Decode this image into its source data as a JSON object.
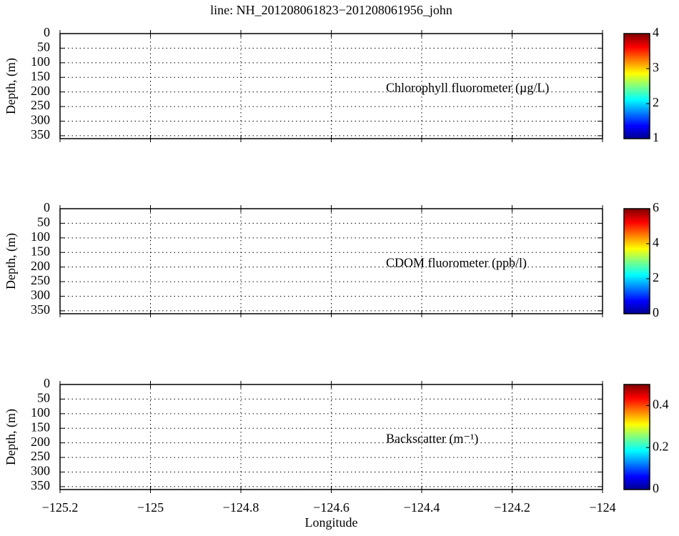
{
  "chart_data": [
    {
      "type": "heatmap",
      "title": "line: NH_201208061823−201208061956_john",
      "ylabel": "Depth, (m)",
      "annotation": "Chlorophyll fluorometer (µg/L)",
      "ylim": [
        0,
        360
      ],
      "y_inverted": true,
      "yticks": [
        0,
        50,
        100,
        150,
        200,
        250,
        300,
        350
      ],
      "xlim": [
        -125.2,
        -124
      ],
      "xticks": [
        -125.2,
        -125,
        -124.8,
        -124.6,
        -124.4,
        -124.2,
        -124
      ],
      "grid": true,
      "colormap": "jet",
      "clim": [
        1,
        4
      ],
      "cticks": [
        1,
        2,
        3,
        4
      ]
    },
    {
      "type": "heatmap",
      "ylabel": "Depth, (m)",
      "annotation": "CDOM fluorometer (ppb/l)",
      "ylim": [
        0,
        360
      ],
      "y_inverted": true,
      "yticks": [
        0,
        50,
        100,
        150,
        200,
        250,
        300,
        350
      ],
      "xlim": [
        -125.2,
        -124
      ],
      "xticks": [
        -125.2,
        -125,
        -124.8,
        -124.6,
        -124.4,
        -124.2,
        -124
      ],
      "grid": true,
      "colormap": "jet",
      "clim": [
        0,
        6
      ],
      "cticks": [
        0,
        2,
        4,
        6
      ]
    },
    {
      "type": "heatmap",
      "ylabel": "Depth, (m)",
      "annotation": "Backscatter (m⁻¹)",
      "xlabel": "Longitude",
      "ylim": [
        0,
        360
      ],
      "y_inverted": true,
      "yticks": [
        0,
        50,
        100,
        150,
        200,
        250,
        300,
        350
      ],
      "xlim": [
        -125.2,
        -124
      ],
      "xticks": [
        {
          "value": -125.2,
          "label": "−125.2"
        },
        {
          "value": -125,
          "label": "−125"
        },
        {
          "value": -124.8,
          "label": "−124.8"
        },
        {
          "value": -124.6,
          "label": "−124.6"
        },
        {
          "value": -124.4,
          "label": "−124.4"
        },
        {
          "value": -124.2,
          "label": "−124.2"
        },
        {
          "value": -124,
          "label": "−124"
        }
      ],
      "grid": true,
      "colormap": "jet",
      "clim": [
        0,
        0.5
      ],
      "cticks": [
        0,
        0.2,
        0.4
      ]
    }
  ]
}
